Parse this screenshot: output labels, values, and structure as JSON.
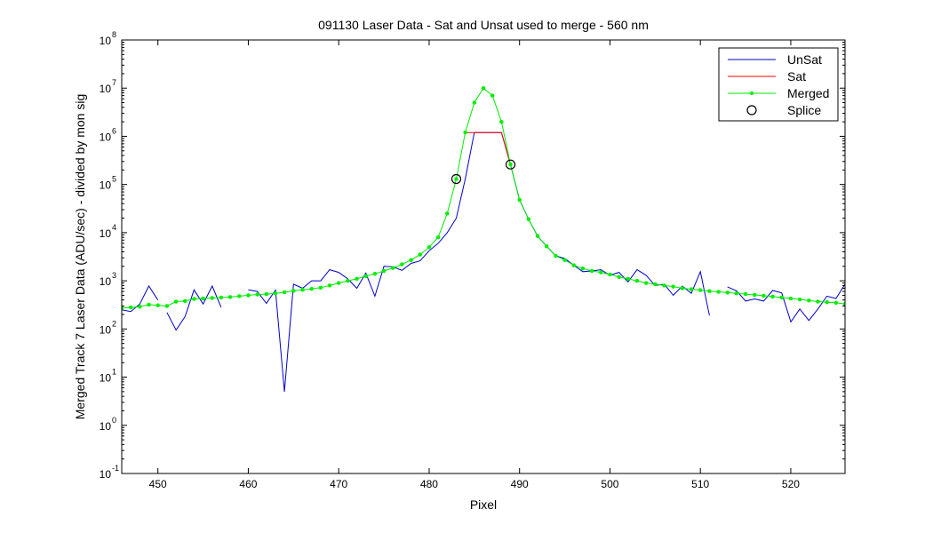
{
  "chart_data": {
    "type": "line",
    "title": "091130 Laser Data - Sat and Unsat used to merge  - 560 nm",
    "xlabel": "Pixel",
    "ylabel": "Merged Track 7 Laser Data (ADU/sec) - divided by mon sig",
    "xlim": [
      446,
      526
    ],
    "ylim": [
      0.1,
      100000000
    ],
    "yscale": "log",
    "grid": false,
    "legend_position": "top-right",
    "x_ticks": [
      450,
      460,
      470,
      480,
      490,
      500,
      510,
      520
    ],
    "y_tick_exponents": [
      -1,
      0,
      1,
      2,
      3,
      4,
      5,
      6,
      7,
      8
    ],
    "y_tick_base": "10",
    "series": [
      {
        "name": "UnSat",
        "color": "#0000cc",
        "marker": "none",
        "segments": [
          {
            "x": [
              446,
              447,
              448,
              449,
              450
            ],
            "y": [
              250,
              230,
              330,
              780,
              400
            ]
          },
          {
            "x": [
              451,
              452,
              453,
              454,
              455,
              456,
              457
            ],
            "y": [
              220,
              95,
              180,
              650,
              330,
              780,
              280
            ]
          },
          {
            "x": [
              460,
              461,
              462,
              463,
              464,
              465,
              466,
              467,
              468,
              469,
              470,
              471,
              472,
              473,
              474,
              475,
              476,
              477,
              478,
              479,
              480,
              481,
              482,
              483,
              484,
              485,
              486,
              487,
              488,
              489,
              490,
              491,
              492,
              493,
              494,
              495,
              496,
              497,
              498,
              499,
              500,
              501,
              502,
              503,
              504,
              505,
              506,
              507,
              508,
              509,
              510,
              511
            ],
            "y": [
              650,
              600,
              340,
              640,
              5,
              850,
              700,
              1000,
              1000,
              1700,
              1500,
              1100,
              700,
              1450,
              480,
              2000,
              1950,
              1650,
              2300,
              2600,
              4200,
              6000,
              10000,
              20000,
              130000,
              1200000,
              1200000,
              1200000,
              1200000,
              260000,
              48000,
              19000,
              8500,
              5200,
              3300,
              2900,
              2100,
              1550,
              1600,
              1700,
              1300,
              1500,
              950,
              1700,
              1300,
              800,
              850,
              500,
              780,
              550,
              1550,
              190
            ]
          },
          {
            "x": [
              513,
              514,
              515,
              516,
              517,
              518,
              519,
              520,
              521,
              522,
              523,
              524,
              525,
              526
            ],
            "y": [
              750,
              620,
              380,
              420,
              380,
              630,
              560,
              140,
              260,
              150,
              260,
              480,
              430,
              850
            ]
          }
        ]
      },
      {
        "name": "Sat",
        "color": "#ff0000",
        "marker": "none",
        "x": [
          484,
          485,
          486,
          487,
          488,
          489
        ],
        "y": [
          1200000,
          1200000,
          1200000,
          1200000,
          1200000,
          260000
        ]
      },
      {
        "name": "Merged",
        "color": "#00ee00",
        "marker": "dot",
        "x": [
          446,
          447,
          448,
          449,
          450,
          451,
          452,
          453,
          454,
          455,
          456,
          457,
          458,
          459,
          460,
          461,
          462,
          463,
          464,
          465,
          466,
          467,
          468,
          469,
          470,
          471,
          472,
          473,
          474,
          475,
          476,
          477,
          478,
          479,
          480,
          481,
          482,
          483,
          484,
          485,
          486,
          487,
          488,
          489,
          490,
          491,
          492,
          493,
          494,
          495,
          496,
          497,
          498,
          499,
          500,
          501,
          502,
          503,
          504,
          505,
          506,
          507,
          508,
          509,
          510,
          511,
          512,
          513,
          514,
          515,
          516,
          517,
          518,
          519,
          520,
          521,
          522,
          523,
          524,
          525,
          526
        ],
        "y": [
          270,
          280,
          290,
          320,
          310,
          300,
          370,
          380,
          420,
          430,
          440,
          450,
          460,
          480,
          500,
          520,
          530,
          550,
          580,
          620,
          650,
          680,
          720,
          800,
          900,
          1000,
          1100,
          1250,
          1400,
          1600,
          1850,
          2200,
          2700,
          3500,
          5000,
          8000,
          25000,
          130000,
          1200000,
          5000000,
          10000000,
          7000000,
          2000000,
          260000,
          48000,
          19000,
          8500,
          5200,
          3300,
          2700,
          2100,
          1800,
          1600,
          1500,
          1350,
          1200,
          1100,
          1000,
          900,
          850,
          800,
          760,
          700,
          670,
          640,
          610,
          590,
          570,
          550,
          530,
          510,
          490,
          470,
          450,
          430,
          410,
          390,
          370,
          360,
          350,
          330
        ]
      },
      {
        "name": "Splice",
        "color": "#000000",
        "marker": "circle",
        "x": [
          483,
          489
        ],
        "y": [
          130000,
          260000
        ]
      }
    ]
  }
}
